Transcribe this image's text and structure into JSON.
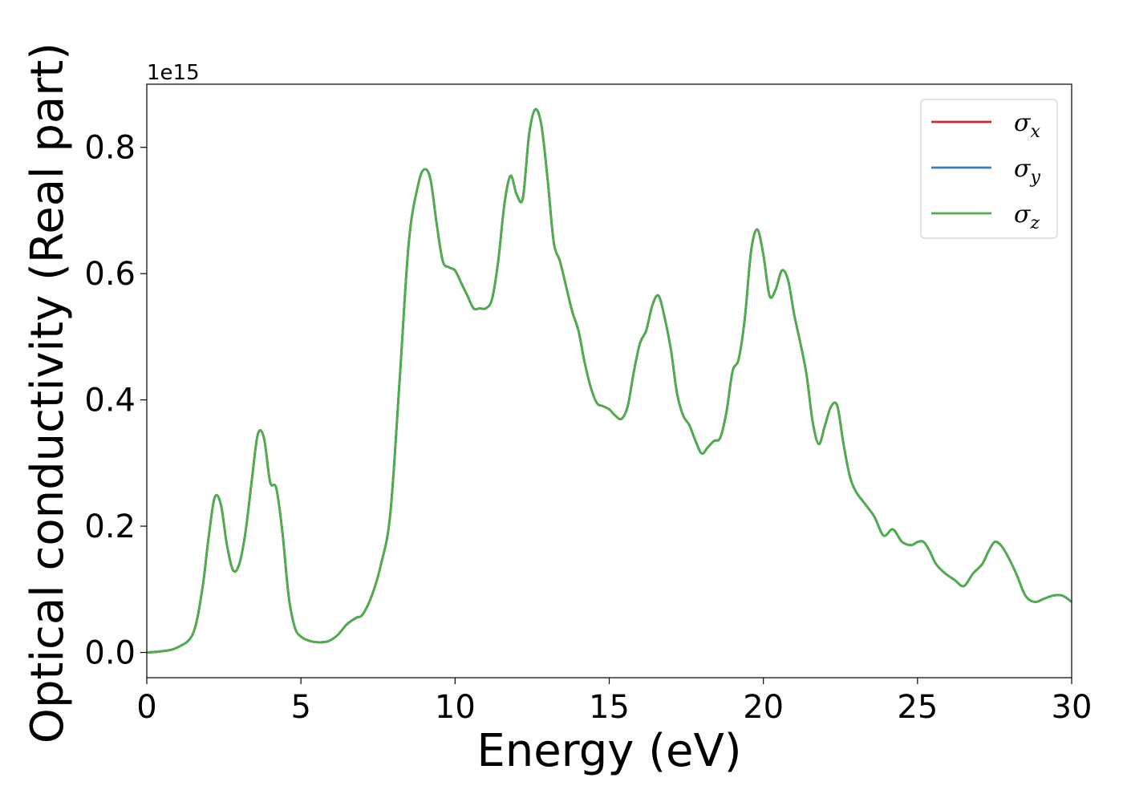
{
  "chart_data": {
    "type": "line",
    "xlabel": "Energy (eV)",
    "ylabel": "Optical conductivity (Real part)",
    "y_offset_text": "1e15",
    "xlim": [
      0,
      30
    ],
    "ylim": [
      -0.04,
      0.9
    ],
    "xticks": [
      0,
      5,
      10,
      15,
      20,
      25,
      30
    ],
    "xtick_labels": [
      "0",
      "5",
      "10",
      "15",
      "20",
      "25",
      "30"
    ],
    "yticks": [
      0.0,
      0.2,
      0.4,
      0.6,
      0.8
    ],
    "ytick_labels": [
      "0.0",
      "0.2",
      "0.4",
      "0.6",
      "0.8"
    ],
    "grid": false,
    "legend_position": "top-right",
    "series": [
      {
        "name": "σx",
        "color": "#d62728"
      },
      {
        "name": "σy",
        "color": "#377eb8"
      },
      {
        "name": "σz",
        "color": "#4daf4a"
      }
    ],
    "x": [
      0,
      0.5,
      1.0,
      1.5,
      1.8,
      2.0,
      2.2,
      2.4,
      2.6,
      2.8,
      3.0,
      3.2,
      3.4,
      3.6,
      3.8,
      4.0,
      4.2,
      4.4,
      4.6,
      4.8,
      5.0,
      5.3,
      5.6,
      5.9,
      6.2,
      6.5,
      6.8,
      7.0,
      7.3,
      7.6,
      7.9,
      8.2,
      8.5,
      8.8,
      9.0,
      9.2,
      9.4,
      9.6,
      9.8,
      10.0,
      10.2,
      10.4,
      10.6,
      10.8,
      11.0,
      11.2,
      11.4,
      11.6,
      11.8,
      12.0,
      12.2,
      12.4,
      12.6,
      12.8,
      13.0,
      13.2,
      13.4,
      13.6,
      13.8,
      14.0,
      14.2,
      14.4,
      14.6,
      14.8,
      15.0,
      15.2,
      15.4,
      15.6,
      15.8,
      16.0,
      16.2,
      16.4,
      16.6,
      16.8,
      17.0,
      17.2,
      17.4,
      17.6,
      17.8,
      18.0,
      18.2,
      18.4,
      18.6,
      18.8,
      19.0,
      19.2,
      19.4,
      19.6,
      19.8,
      20.0,
      20.2,
      20.4,
      20.6,
      20.8,
      21.0,
      21.2,
      21.4,
      21.6,
      21.8,
      22.0,
      22.2,
      22.4,
      22.6,
      22.8,
      23.0,
      23.3,
      23.6,
      23.9,
      24.2,
      24.5,
      24.8,
      25.0,
      25.2,
      25.4,
      25.6,
      25.9,
      26.2,
      26.5,
      26.8,
      27.1,
      27.3,
      27.5,
      27.7,
      27.9,
      28.2,
      28.5,
      28.8,
      29.1,
      29.4,
      29.7,
      30.0
    ],
    "y": [
      0.0,
      0.002,
      0.008,
      0.03,
      0.1,
      0.18,
      0.245,
      0.235,
      0.17,
      0.13,
      0.14,
      0.19,
      0.27,
      0.345,
      0.34,
      0.27,
      0.26,
      0.19,
      0.09,
      0.04,
      0.025,
      0.018,
      0.016,
      0.018,
      0.028,
      0.045,
      0.055,
      0.06,
      0.09,
      0.14,
      0.22,
      0.43,
      0.65,
      0.74,
      0.765,
      0.75,
      0.68,
      0.62,
      0.61,
      0.605,
      0.585,
      0.565,
      0.545,
      0.545,
      0.545,
      0.56,
      0.62,
      0.71,
      0.755,
      0.725,
      0.72,
      0.82,
      0.86,
      0.835,
      0.75,
      0.65,
      0.62,
      0.58,
      0.54,
      0.51,
      0.46,
      0.42,
      0.395,
      0.39,
      0.385,
      0.375,
      0.37,
      0.39,
      0.445,
      0.49,
      0.51,
      0.55,
      0.565,
      0.53,
      0.48,
      0.41,
      0.375,
      0.36,
      0.335,
      0.315,
      0.325,
      0.335,
      0.34,
      0.38,
      0.445,
      0.465,
      0.53,
      0.635,
      0.67,
      0.63,
      0.565,
      0.575,
      0.605,
      0.59,
      0.535,
      0.49,
      0.44,
      0.365,
      0.33,
      0.36,
      0.39,
      0.39,
      0.33,
      0.28,
      0.255,
      0.235,
      0.215,
      0.185,
      0.195,
      0.175,
      0.17,
      0.175,
      0.175,
      0.16,
      0.14,
      0.125,
      0.115,
      0.105,
      0.125,
      0.14,
      0.16,
      0.175,
      0.17,
      0.155,
      0.125,
      0.09,
      0.08,
      0.085,
      0.09,
      0.09,
      0.08
    ]
  }
}
